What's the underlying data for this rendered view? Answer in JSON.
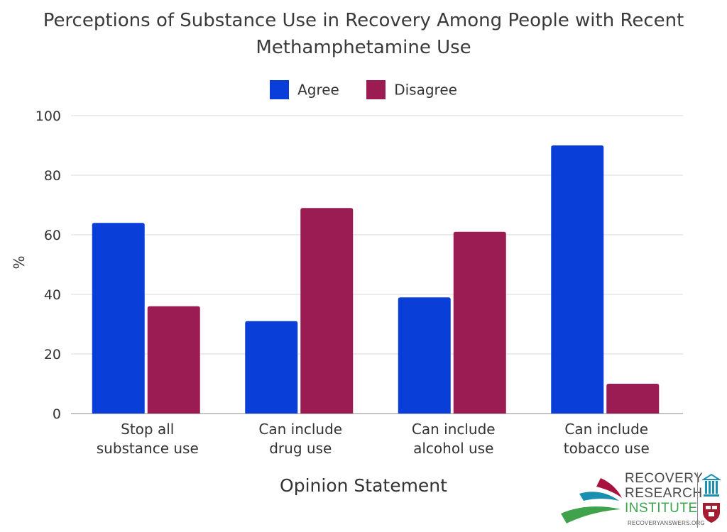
{
  "chart_data": {
    "type": "bar",
    "title_lines": [
      "Perceptions of Substance Use in Recovery Among People with Recent",
      "Methamphetamine Use"
    ],
    "xlabel": "Opinion Statement",
    "ylabel": "%",
    "ylim": [
      0,
      100
    ],
    "yticks": [
      "0",
      "20",
      "40",
      "60",
      "80",
      "100"
    ],
    "grid": true,
    "legend_position": "top-center",
    "categories": [
      [
        "Stop all",
        "substance use"
      ],
      [
        "Can include",
        "drug use"
      ],
      [
        "Can include",
        "alcohol use"
      ],
      [
        "Can include",
        "tobacco use"
      ]
    ],
    "series": [
      {
        "name": "Agree",
        "color": "#0a3ed8",
        "values": [
          64,
          31,
          39,
          90
        ]
      },
      {
        "name": "Disagree",
        "color": "#9b1c52",
        "values": [
          36,
          69,
          61,
          10
        ]
      }
    ]
  },
  "logo": {
    "line1": "RECOVERY",
    "line2": "RESEARCH",
    "line3": "INSTITUTE",
    "url": "RECOVERYANSWERS.ORG"
  }
}
